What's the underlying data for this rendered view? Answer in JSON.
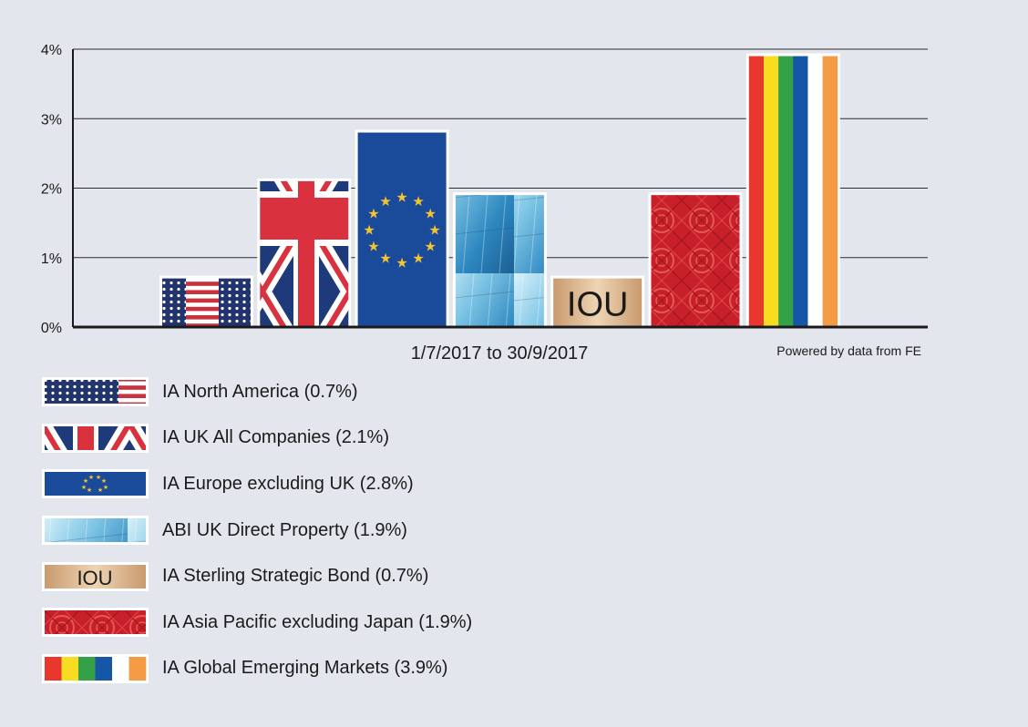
{
  "chart_data": {
    "type": "bar",
    "categories": [
      "IA North America",
      "IA UK All Companies",
      "IA Europe excluding UK",
      "ABI UK Direct Property",
      "IA Sterling Strategic Bond",
      "IA Asia Pacific excluding Japan",
      "IA Global Emerging Markets"
    ],
    "values": [
      0.7,
      2.1,
      2.8,
      1.9,
      0.7,
      1.9,
      3.9
    ],
    "ylim": [
      0,
      4
    ],
    "yticks": [
      "0%",
      "1%",
      "2%",
      "3%",
      "4%"
    ],
    "xlabel": "1/7/2017 to 30/9/2017",
    "annotation": "Powered by data from FE",
    "grid": true,
    "legend_position": "bottom-left",
    "patterns": [
      "us-flag",
      "uk-flag",
      "eu-flag",
      "glass-building",
      "iou-paper",
      "red-asian-pattern",
      "rainbow-stripes"
    ],
    "bar_text": [
      "",
      "",
      "",
      "",
      "IOU",
      "",
      ""
    ]
  },
  "legend": [
    {
      "label": "IA North America (0.7%)"
    },
    {
      "label": "IA UK All Companies (2.1%)"
    },
    {
      "label": "IA Europe excluding UK (2.8%)"
    },
    {
      "label": "ABI UK Direct Property (1.9%)"
    },
    {
      "label": "IA Sterling Strategic Bond (0.7%)"
    },
    {
      "label": "IA Asia Pacific excluding Japan (1.9%)"
    },
    {
      "label": "IA Global Emerging Markets (3.9%)"
    }
  ],
  "colors": {
    "background": "#e3e6ec",
    "navy": "#1f3a7a",
    "red": "#d9323e",
    "eu_blue": "#1a4a9a",
    "gold": "#f4c430",
    "asia_red": "#c8202a",
    "tan": "#d9b48a"
  }
}
